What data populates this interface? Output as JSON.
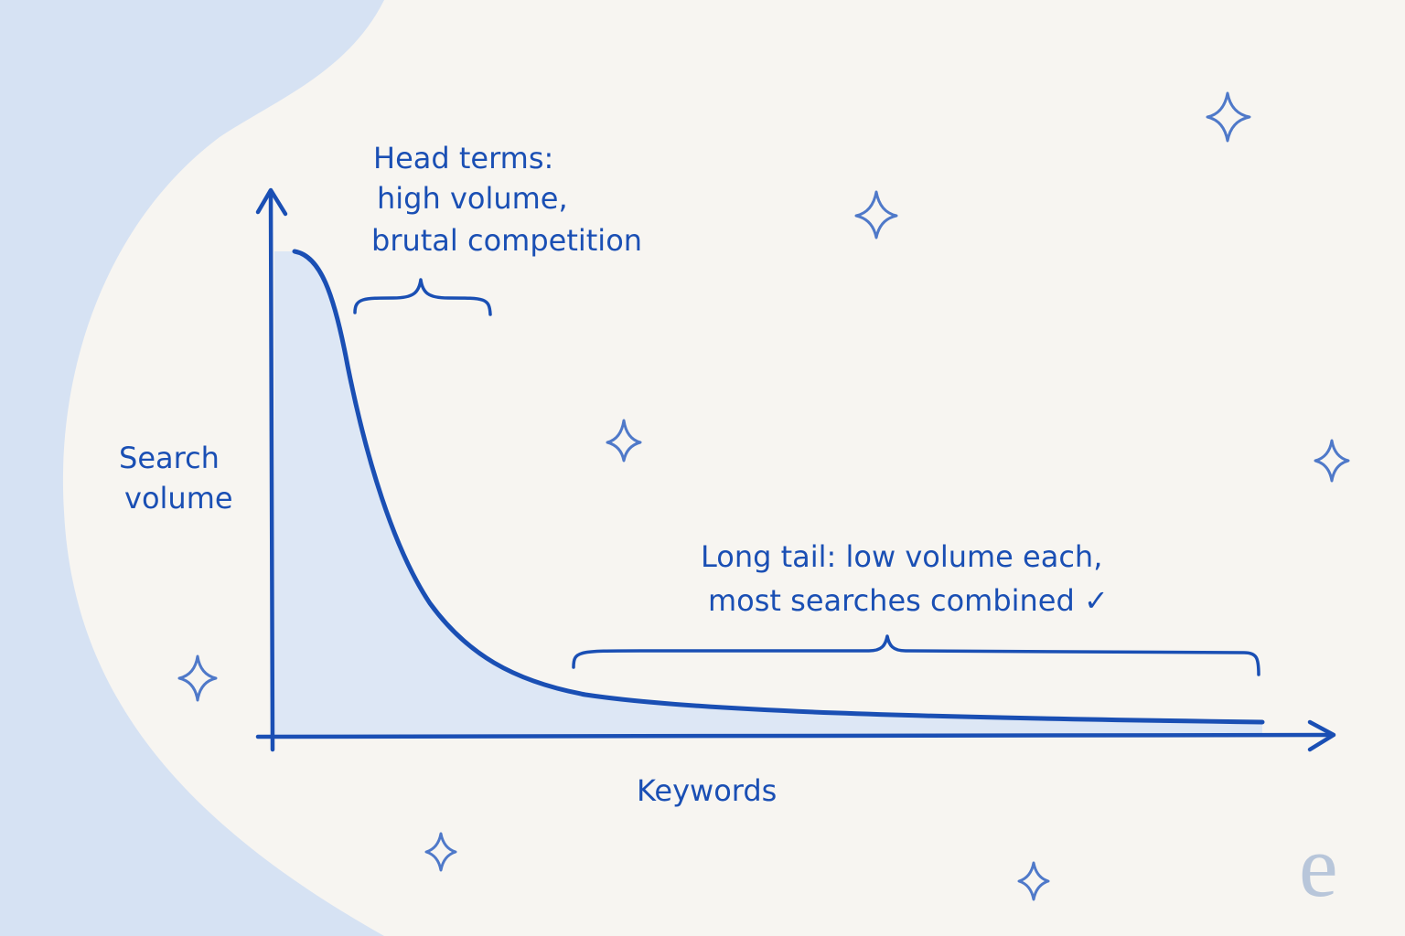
{
  "y_axis_label": [
    "Search",
    "volume"
  ],
  "x_axis_label": "Keywords",
  "annotations": [
    {
      "lines": [
        "Head terms:",
        "high volume,",
        "brutal competition"
      ]
    },
    {
      "lines": [
        "Long tail: low volume each,",
        "most searches combined ✓"
      ]
    }
  ],
  "logo": "e"
}
